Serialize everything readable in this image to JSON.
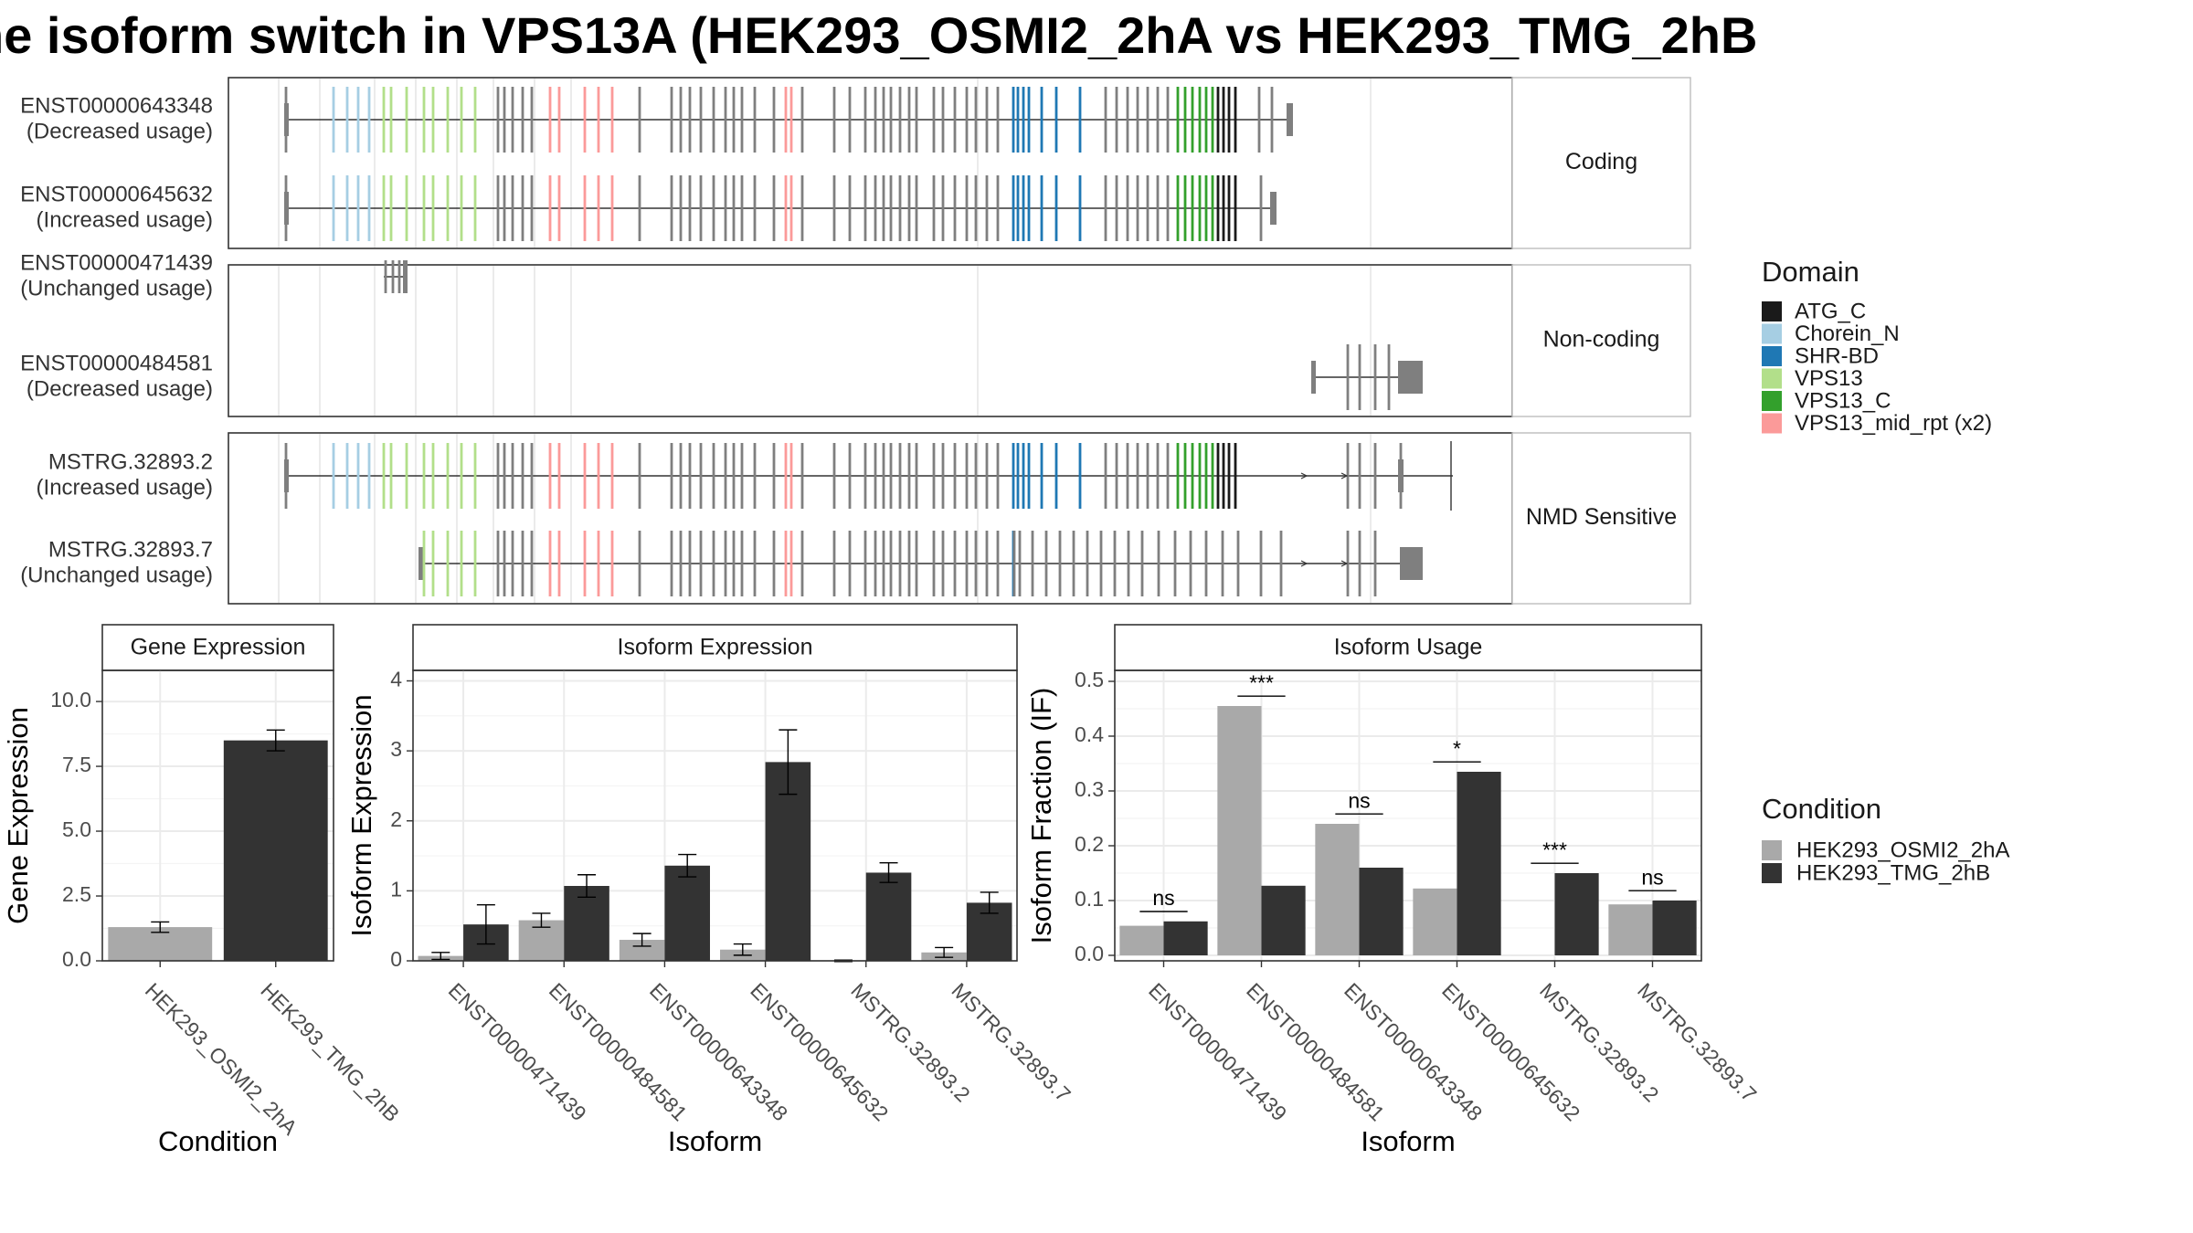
{
  "title": "ne isoform switch in VPS13A (HEK293_OSMI2_2hA vs HEK293_TMG_2hB",
  "colors": {
    "ATG_C": "#1a1a1a",
    "Chorein_N": "#a6cee3",
    "SHR-BD": "#1f78b4",
    "VPS13": "#b2df8a",
    "VPS13_C": "#33a02c",
    "VPS13_mid_rpt (x2)": "#fb9a99",
    "exon": "#7f7f7f",
    "cond1": "#a9a9a9",
    "cond2": "#333333"
  },
  "chart_data": [
    {
      "type": "gene-structure",
      "panels": [
        {
          "label": "Coding",
          "transcripts": [
            {
              "id": "ENST00000643348",
              "usage": "(Decreased usage)"
            },
            {
              "id": "ENST00000645632",
              "usage": "(Increased usage)"
            }
          ]
        },
        {
          "label": "Non-coding",
          "transcripts": [
            {
              "id": "ENST00000471439",
              "usage": "(Unchanged usage)"
            },
            {
              "id": "ENST00000484581",
              "usage": "(Decreased usage)"
            }
          ]
        },
        {
          "label": "NMD Sensitive",
          "transcripts": [
            {
              "id": "MSTRG.32893.2",
              "usage": "(Increased usage)"
            },
            {
              "id": "MSTRG.32893.7",
              "usage": "(Unchanged usage)"
            }
          ]
        }
      ],
      "legend_title": "Domain",
      "legend": [
        "ATG_C",
        "Chorein_N",
        "SHR-BD",
        "VPS13",
        "VPS13_C",
        "VPS13_mid_rpt (x2)"
      ]
    },
    {
      "type": "bar",
      "title": "Gene Expression",
      "xlabel": "Condition",
      "ylabel": "Gene Expression",
      "ylim": [
        0,
        11.2
      ],
      "yticks": [
        "0.0",
        "2.5",
        "5.0",
        "7.5",
        "10.0"
      ],
      "categories": [
        "HEK293_OSMI2_2hA",
        "HEK293_TMG_2hB"
      ],
      "values": [
        1.3,
        8.5
      ],
      "errors": [
        0.2,
        0.4
      ]
    },
    {
      "type": "bar",
      "title": "Isoform Expression",
      "xlabel": "Isoform",
      "ylabel": "Isoform Expression",
      "ylim": [
        0,
        4.15
      ],
      "yticks": [
        "0",
        "1",
        "2",
        "3",
        "4"
      ],
      "categories": [
        "ENST00000471439",
        "ENST00000484581",
        "ENST00000643348",
        "ENST00000645632",
        "MSTRG.32893.2",
        "MSTRG.32893.7"
      ],
      "series": [
        {
          "name": "HEK293_OSMI2_2hA",
          "values": [
            0.07,
            0.58,
            0.3,
            0.16,
            0.0,
            0.12
          ],
          "errors": [
            0.05,
            0.1,
            0.09,
            0.08,
            0.01,
            0.07
          ]
        },
        {
          "name": "HEK293_TMG_2hB",
          "values": [
            0.52,
            1.07,
            1.36,
            2.84,
            1.26,
            0.83
          ],
          "errors": [
            0.28,
            0.16,
            0.16,
            0.46,
            0.14,
            0.15
          ]
        }
      ]
    },
    {
      "type": "bar",
      "title": "Isoform Usage",
      "xlabel": "Isoform",
      "ylabel": "Isoform Fraction (IF)",
      "ylim": [
        -0.01,
        0.52
      ],
      "yticks": [
        "0.0",
        "0.1",
        "0.2",
        "0.3",
        "0.4",
        "0.5"
      ],
      "categories": [
        "ENST00000471439",
        "ENST00000484581",
        "ENST00000643348",
        "ENST00000645632",
        "MSTRG.32893.2",
        "MSTRG.32893.7"
      ],
      "series": [
        {
          "name": "HEK293_OSMI2_2hA",
          "values": [
            0.054,
            0.455,
            0.24,
            0.122,
            0.0,
            0.093
          ]
        },
        {
          "name": "HEK293_TMG_2hB",
          "values": [
            0.062,
            0.127,
            0.16,
            0.335,
            0.15,
            0.1
          ]
        }
      ],
      "significance": [
        "ns",
        "***",
        "ns",
        "*",
        "***",
        "ns"
      ],
      "legend_title": "Condition",
      "legend": [
        "HEK293_OSMI2_2hA",
        "HEK293_TMG_2hB"
      ]
    }
  ]
}
